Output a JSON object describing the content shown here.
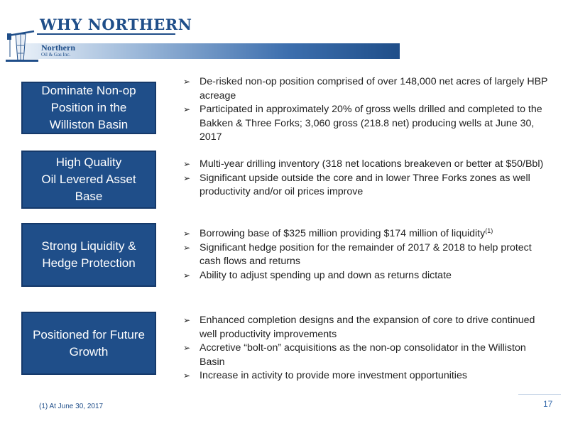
{
  "header": {
    "title": "WHY NORTHERN",
    "logo": {
      "name": "Northern",
      "subtitle": "Oil & Gas Inc."
    }
  },
  "sections": [
    {
      "label_lines": [
        "Dominate Non-op",
        "Position in the",
        "Williston Basin"
      ],
      "bullets": [
        {
          "text": "De-risked non-op position comprised of over 148,000 net acres of largely HBP acreage"
        },
        {
          "text": "Participated in approximately 20% of gross wells drilled and completed to the Bakken & Three Forks; 3,060 gross (218.8 net) producing wells at June 30, 2017"
        }
      ]
    },
    {
      "label_lines": [
        "High Quality",
        "Oil Levered Asset",
        "Base"
      ],
      "bullets": [
        {
          "text": "Multi-year drilling inventory (318 net locations breakeven or better at $50/Bbl)"
        },
        {
          "text": "Significant upside outside the core and in lower Three Forks zones as well productivity and/or oil prices improve"
        }
      ]
    },
    {
      "label_lines": [
        "Strong Liquidity &",
        "Hedge Protection"
      ],
      "bullets": [
        {
          "text": "Borrowing base of $325 million providing $174 million of liquidity",
          "sup": "(1)"
        },
        {
          "text": "Significant hedge position for the remainder of 2017 & 2018 to help protect cash flows and returns"
        },
        {
          "text": "Ability to adjust spending up and down as returns dictate"
        }
      ]
    },
    {
      "label_lines": [
        "Positioned for Future",
        "Growth"
      ],
      "bullets": [
        {
          "text": "Enhanced completion designs and the expansion of core  to drive continued well productivity improvements"
        },
        {
          "text": "Accretive “bolt-on” acquisitions as the non-op consolidator in the Williston Basin"
        },
        {
          "text": "Increase in activity to provide more investment opportunities"
        }
      ]
    }
  ],
  "footnote": "(1) At June 30, 2017",
  "page_number": "17",
  "icons": {
    "bullet": "arrow-bullet-icon",
    "logo": "oil-pumpjack-icon"
  },
  "colors": {
    "brand_blue": "#1f4e89",
    "box_border": "#15396a"
  }
}
